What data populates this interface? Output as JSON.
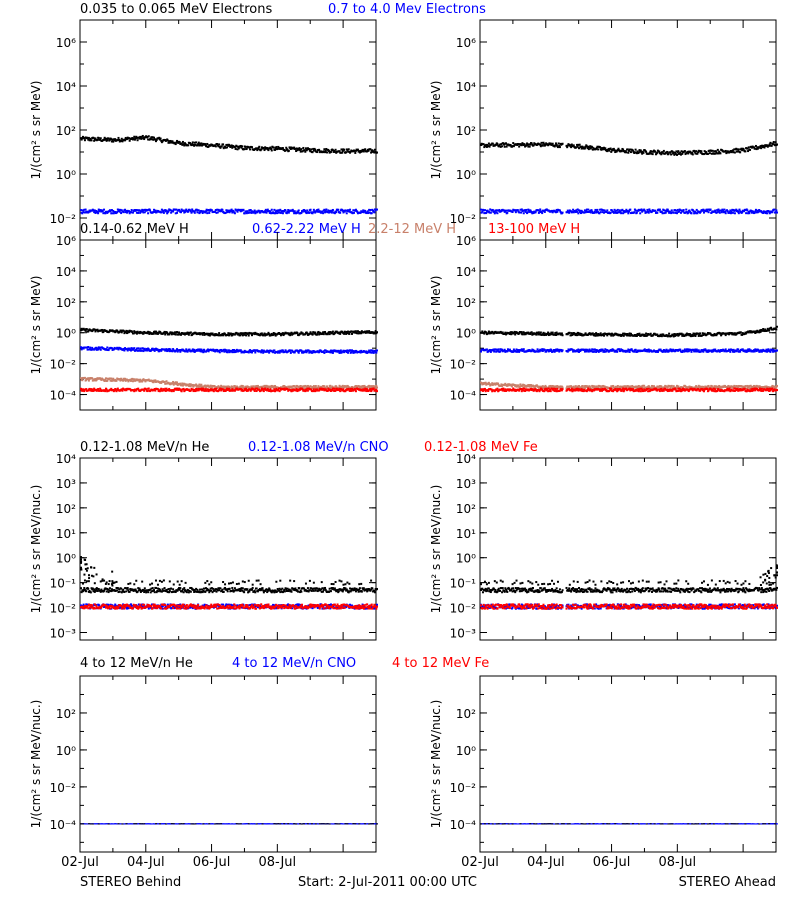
{
  "figure": {
    "footer": {
      "left": "STEREO Behind",
      "center": "Start:  2-Jul-2011 00:00 UTC",
      "right": "STEREO Ahead"
    },
    "x_ticks": [
      "02-Jul",
      "04-Jul",
      "06-Jul",
      "08-Jul"
    ],
    "x_range_days": [
      0,
      9
    ]
  },
  "chart_data": [
    {
      "type": "scatter",
      "group": "electrons",
      "legend": [
        {
          "name": "0.035 to 0.065 MeV Electrons",
          "color": "#000000"
        },
        {
          "name": "0.7 to 4.0 Mev Electrons",
          "color": "#0000ff"
        }
      ],
      "ylabel": "1/(cm² s sr MeV)",
      "yscale": "log",
      "ylim": [
        0.001,
        10000000
      ],
      "yticks": [
        {
          "label": "10⁻²",
          "value": 0.01
        },
        {
          "label": "10⁰",
          "value": 1
        },
        {
          "label": "10²",
          "value": 100
        },
        {
          "label": "10⁴",
          "value": 10000
        },
        {
          "label": "10⁶",
          "value": 1000000
        }
      ],
      "panels": [
        {
          "side": "STEREO Behind",
          "series": [
            {
              "color": "#000000",
              "level_points": [
                [
                  0,
                  40
                ],
                [
                  1,
                  35
                ],
                [
                  2,
                  45
                ],
                [
                  3,
                  25
                ],
                [
                  4,
                  20
                ],
                [
                  5,
                  15
                ],
                [
                  6,
                  14
                ],
                [
                  7,
                  12
                ],
                [
                  8,
                  11
                ],
                [
                  9,
                  11
                ]
              ]
            },
            {
              "color": "#0000ff",
              "level_points": [
                [
                  0,
                  0.02
                ],
                [
                  9,
                  0.02
                ]
              ]
            }
          ]
        },
        {
          "side": "STEREO Ahead",
          "series": [
            {
              "color": "#000000",
              "level_points": [
                [
                  0,
                  20
                ],
                [
                  2,
                  22
                ],
                [
                  3,
                  18
                ],
                [
                  4,
                  12
                ],
                [
                  5,
                  10
                ],
                [
                  6,
                  9
                ],
                [
                  7,
                  10
                ],
                [
                  8,
                  12
                ],
                [
                  9,
                  25
                ]
              ],
              "gaps": [
                [
                  2.5,
                  2.6
                ]
              ]
            },
            {
              "color": "#0000ff",
              "level_points": [
                [
                  0,
                  0.02
                ],
                [
                  9,
                  0.02
                ]
              ],
              "gaps": [
                [
                  2.5,
                  2.6
                ]
              ]
            }
          ]
        }
      ]
    },
    {
      "type": "scatter",
      "group": "protons",
      "legend": [
        {
          "name": "0.14-0.62 MeV H",
          "color": "#000000"
        },
        {
          "name": "0.62-2.22 MeV H",
          "color": "#0000ff"
        },
        {
          "name": "2.2-12 MeV H",
          "color": "#c8806a"
        },
        {
          "name": "13-100 MeV H",
          "color": "#ff0000"
        }
      ],
      "ylabel": "1/(cm² s sr MeV)",
      "yscale": "log",
      "ylim": [
        1e-05,
        1000000
      ],
      "yticks": [
        {
          "label": "10⁻⁴",
          "value": 0.0001
        },
        {
          "label": "10⁻²",
          "value": 0.01
        },
        {
          "label": "10⁰",
          "value": 1
        },
        {
          "label": "10²",
          "value": 100
        },
        {
          "label": "10⁴",
          "value": 10000
        },
        {
          "label": "10⁶",
          "value": 1000000
        }
      ],
      "panels": [
        {
          "side": "STEREO Behind",
          "series": [
            {
              "color": "#000000",
              "level_points": [
                [
                  0,
                  1.5
                ],
                [
                  2,
                  1.0
                ],
                [
                  4,
                  0.8
                ],
                [
                  6,
                  0.8
                ],
                [
                  8,
                  1.0
                ],
                [
                  9,
                  1.1
                ]
              ]
            },
            {
              "color": "#0000ff",
              "level_points": [
                [
                  0,
                  0.1
                ],
                [
                  3,
                  0.07
                ],
                [
                  6,
                  0.06
                ],
                [
                  9,
                  0.06
                ]
              ]
            },
            {
              "color": "#c8806a",
              "level_points": [
                [
                  0,
                  0.001
                ],
                [
                  2,
                  0.0008
                ],
                [
                  4,
                  0.0003
                ]
              ]
            },
            {
              "color": "#ff0000",
              "level_points": [
                [
                  0,
                  0.0002
                ],
                [
                  9,
                  0.0002
                ]
              ]
            }
          ]
        },
        {
          "side": "STEREO Ahead",
          "series": [
            {
              "color": "#000000",
              "level_points": [
                [
                  0,
                  1.0
                ],
                [
                  3,
                  0.8
                ],
                [
                  6,
                  0.7
                ],
                [
                  8,
                  0.9
                ],
                [
                  9,
                  2.0
                ]
              ],
              "gaps": [
                [
                  2.5,
                  2.6
                ]
              ]
            },
            {
              "color": "#0000ff",
              "level_points": [
                [
                  0,
                  0.07
                ],
                [
                  9,
                  0.07
                ]
              ],
              "gaps": [
                [
                  2.5,
                  2.6
                ]
              ]
            },
            {
              "color": "#c8806a",
              "level_points": [
                [
                  0,
                  0.0005
                ],
                [
                  2,
                  0.0003
                ]
              ],
              "gaps": [
                [
                  2.5,
                  2.6
                ]
              ]
            },
            {
              "color": "#ff0000",
              "level_points": [
                [
                  0,
                  0.0002
                ],
                [
                  9,
                  0.0002
                ]
              ],
              "gaps": [
                [
                  2.5,
                  2.6
                ]
              ]
            }
          ]
        }
      ]
    },
    {
      "type": "scatter",
      "group": "heavy_low",
      "legend": [
        {
          "name": "0.12-1.08 MeV/n He",
          "color": "#000000"
        },
        {
          "name": "0.12-1.08 MeV/n CNO",
          "color": "#0000ff"
        },
        {
          "name": "0.12-1.08 MeV Fe",
          "color": "#ff0000"
        }
      ],
      "ylabel": "1/(cm² s sr MeV/nuc.)",
      "yscale": "log",
      "ylim": [
        0.0005,
        10000
      ],
      "yticks": [
        {
          "label": "10⁻³",
          "value": 0.001
        },
        {
          "label": "10⁻²",
          "value": 0.01
        },
        {
          "label": "10⁻¹",
          "value": 0.1
        },
        {
          "label": "10⁰",
          "value": 1
        },
        {
          "label": "10¹",
          "value": 10
        },
        {
          "label": "10²",
          "value": 100
        },
        {
          "label": "10³",
          "value": 1000
        },
        {
          "label": "10⁴",
          "value": 10000
        }
      ],
      "panels": [
        {
          "side": "STEREO Behind",
          "series": [
            {
              "color": "#000000",
              "level_points": [
                [
                  0,
                  0.05
                ],
                [
                  9,
                  0.05
                ]
              ]
            },
            {
              "color": "#000000",
              "level_points": [
                [
                  0,
                  0.1
                ],
                [
                  9,
                  0.1
                ]
              ],
              "sparse": true,
              "burst": [
                [
                  0,
                  0.6
                ],
                [
                  0.3,
                  0.3
                ],
                [
                  0.8,
                  0.15
                ]
              ]
            },
            {
              "color": "#0000ff",
              "level_points": [
                [
                  0,
                  0.011
                ],
                [
                  9,
                  0.011
                ]
              ]
            },
            {
              "color": "#ff0000",
              "level_points": [
                [
                  0,
                  0.011
                ],
                [
                  9,
                  0.011
                ]
              ]
            }
          ]
        },
        {
          "side": "STEREO Ahead",
          "series": [
            {
              "color": "#000000",
              "level_points": [
                [
                  0,
                  0.05
                ],
                [
                  9,
                  0.05
                ]
              ],
              "gaps": [
                [
                  2.5,
                  2.6
                ]
              ]
            },
            {
              "color": "#000000",
              "level_points": [
                [
                  0,
                  0.1
                ],
                [
                  9,
                  0.1
                ]
              ],
              "sparse": true,
              "gaps": [
                [
                  2.5,
                  2.6
                ]
              ],
              "burst": [
                [
                  8.6,
                  0.15
                ],
                [
                  9,
                  0.3
                ]
              ]
            },
            {
              "color": "#0000ff",
              "level_points": [
                [
                  0,
                  0.011
                ],
                [
                  9,
                  0.011
                ]
              ],
              "gaps": [
                [
                  2.5,
                  2.6
                ]
              ]
            },
            {
              "color": "#ff0000",
              "level_points": [
                [
                  0,
                  0.011
                ],
                [
                  9,
                  0.011
                ]
              ],
              "gaps": [
                [
                  2.5,
                  2.6
                ]
              ]
            }
          ]
        }
      ]
    },
    {
      "type": "scatter",
      "group": "heavy_high",
      "legend": [
        {
          "name": "4 to 12 MeV/n He",
          "color": "#000000"
        },
        {
          "name": "4 to 12 MeV/n CNO",
          "color": "#0000ff"
        },
        {
          "name": "4 to 12 MeV Fe",
          "color": "#ff0000"
        }
      ],
      "ylabel": "1/(cm² s sr MeV/nuc.)",
      "yscale": "log",
      "ylim": [
        3e-06,
        10000
      ],
      "yticks": [
        {
          "label": "10⁻⁴",
          "value": 0.0001
        },
        {
          "label": "10⁻²",
          "value": 0.01
        },
        {
          "label": "10⁰",
          "value": 1
        },
        {
          "label": "10²",
          "value": 100
        }
      ],
      "panels": [
        {
          "side": "STEREO Behind",
          "series": [
            {
              "color": "#0000ff",
              "level_points": [
                [
                  0,
                  0.0001
                ],
                [
                  9,
                  0.0001
                ]
              ],
              "thin": true
            },
            {
              "color": "#000000",
              "level_points": [
                [
                  0,
                  0.0001
                ],
                [
                  9,
                  0.0001
                ]
              ],
              "sparse": true,
              "thin": true
            }
          ]
        },
        {
          "side": "STEREO Ahead",
          "series": [
            {
              "color": "#0000ff",
              "level_points": [
                [
                  0,
                  0.0001
                ],
                [
                  9,
                  0.0001
                ]
              ],
              "thin": true
            },
            {
              "color": "#000000",
              "level_points": [
                [
                  0,
                  0.0001
                ],
                [
                  9,
                  0.0001
                ]
              ],
              "sparse": true,
              "thin": true
            }
          ]
        }
      ]
    }
  ]
}
